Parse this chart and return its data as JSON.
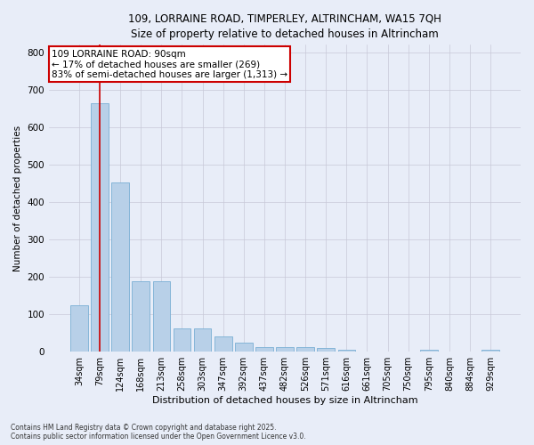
{
  "title_line1": "109, LORRAINE ROAD, TIMPERLEY, ALTRINCHAM, WA15 7QH",
  "title_line2": "Size of property relative to detached houses in Altrincham",
  "xlabel": "Distribution of detached houses by size in Altrincham",
  "ylabel": "Number of detached properties",
  "categories": [
    "34sqm",
    "79sqm",
    "124sqm",
    "168sqm",
    "213sqm",
    "258sqm",
    "303sqm",
    "347sqm",
    "392sqm",
    "437sqm",
    "482sqm",
    "526sqm",
    "571sqm",
    "616sqm",
    "661sqm",
    "705sqm",
    "750sqm",
    "795sqm",
    "840sqm",
    "884sqm",
    "929sqm"
  ],
  "values": [
    125,
    665,
    453,
    188,
    188,
    62,
    62,
    42,
    25,
    12,
    12,
    12,
    10,
    5,
    0,
    0,
    0,
    5,
    0,
    0,
    5
  ],
  "bar_color": "#b8d0e8",
  "bar_edge_color": "#7aafd4",
  "grid_color": "#c8c8d8",
  "bg_color": "#e8edf8",
  "vline_x_bar_index": 1,
  "vline_color": "#cc0000",
  "annotation_text": "109 LORRAINE ROAD: 90sqm\n← 17% of detached houses are smaller (269)\n83% of semi-detached houses are larger (1,313) →",
  "annotation_box_color": "#ffffff",
  "annotation_border_color": "#cc0000",
  "footer_line1": "Contains HM Land Registry data © Crown copyright and database right 2025.",
  "footer_line2": "Contains public sector information licensed under the Open Government Licence v3.0.",
  "ylim": [
    0,
    820
  ],
  "yticks": [
    0,
    100,
    200,
    300,
    400,
    500,
    600,
    700,
    800
  ]
}
